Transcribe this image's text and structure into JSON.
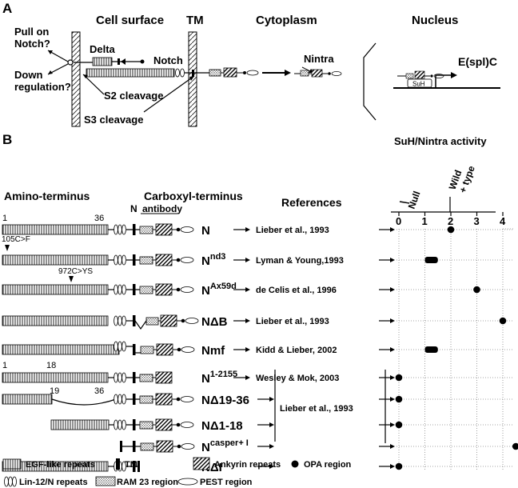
{
  "panel_a": {
    "label": "A",
    "cell_surface": "Cell surface",
    "tm": "TM",
    "cytoplasm": "Cytoplasm",
    "nucleus": "Nucleus",
    "pull_on_notch_1": "Pull on",
    "pull_on_notch_2": "Notch?",
    "down_reg_1": "Down",
    "down_reg_2": "regulation?",
    "delta": "Delta",
    "notch": "Notch",
    "nintra": "Nintra",
    "s2": "S2 cleavage",
    "s3": "S3 cleavage",
    "espl": "E(spl)C",
    "suh": "SuH"
  },
  "panel_b": {
    "label": "B",
    "amino": "Amino-terminus",
    "carboxyl": "Carboxyl-terminus",
    "n_antibody_n": "N",
    "n_antibody": "antibody",
    "references": "References",
    "activity_title": "SuH/Nintra activity",
    "null_label": "Null",
    "wild_label_1": "Wild",
    "wild_label_2": "+ type",
    "tick_1": "1",
    "tick_36": "36",
    "tick_18": "18",
    "tick_19": "19",
    "tick_36b": "36",
    "mut_105": "105C>F",
    "mut_972": "972C>YS",
    "shared_ref": "Lieber et al., 1993",
    "axis_ticks": [
      "0",
      "1",
      "2",
      "3",
      "4"
    ]
  },
  "constructs": [
    {
      "name": "N",
      "sup": "",
      "ref": "Lieber et al., 1993",
      "activity": 2
    },
    {
      "name": "N",
      "sup": "nd3",
      "ref": "Lyman & Young,1993",
      "activity": [
        1,
        1.5
      ]
    },
    {
      "name": "N",
      "sup": "Ax59d",
      "ref": "de Celis et al., 1996",
      "activity": 3
    },
    {
      "name": "NΔB",
      "sup": "",
      "ref": "Lieber et al., 1993",
      "activity": 4
    },
    {
      "name": "Nmf",
      "sup": "",
      "ref": "Kidd & Lieber, 2002",
      "activity": [
        1,
        1.5
      ]
    },
    {
      "name": "N",
      "sup": "1-2155",
      "ref": "Wesley & Mok, 2003",
      "activity": 0
    },
    {
      "name": "NΔ19-36",
      "sup": "",
      "ref": "",
      "activity": 0
    },
    {
      "name": "NΔ1-18",
      "sup": "",
      "ref": "",
      "activity": 0
    },
    {
      "name": "N",
      "sup": "casper+ I",
      "ref": "",
      "activity": 4.5
    },
    {
      "name": "NΔI",
      "sup": "",
      "ref": "",
      "activity": 0
    }
  ],
  "legend": {
    "egf": "EGF-like repeats",
    "tm": "TM",
    "ankyrin": "Ankyrin repeats",
    "opa": "OPA region",
    "lin12": "Lin-12/N repeats",
    "ram": "RAM 23 region",
    "pest": "PEST region"
  }
}
